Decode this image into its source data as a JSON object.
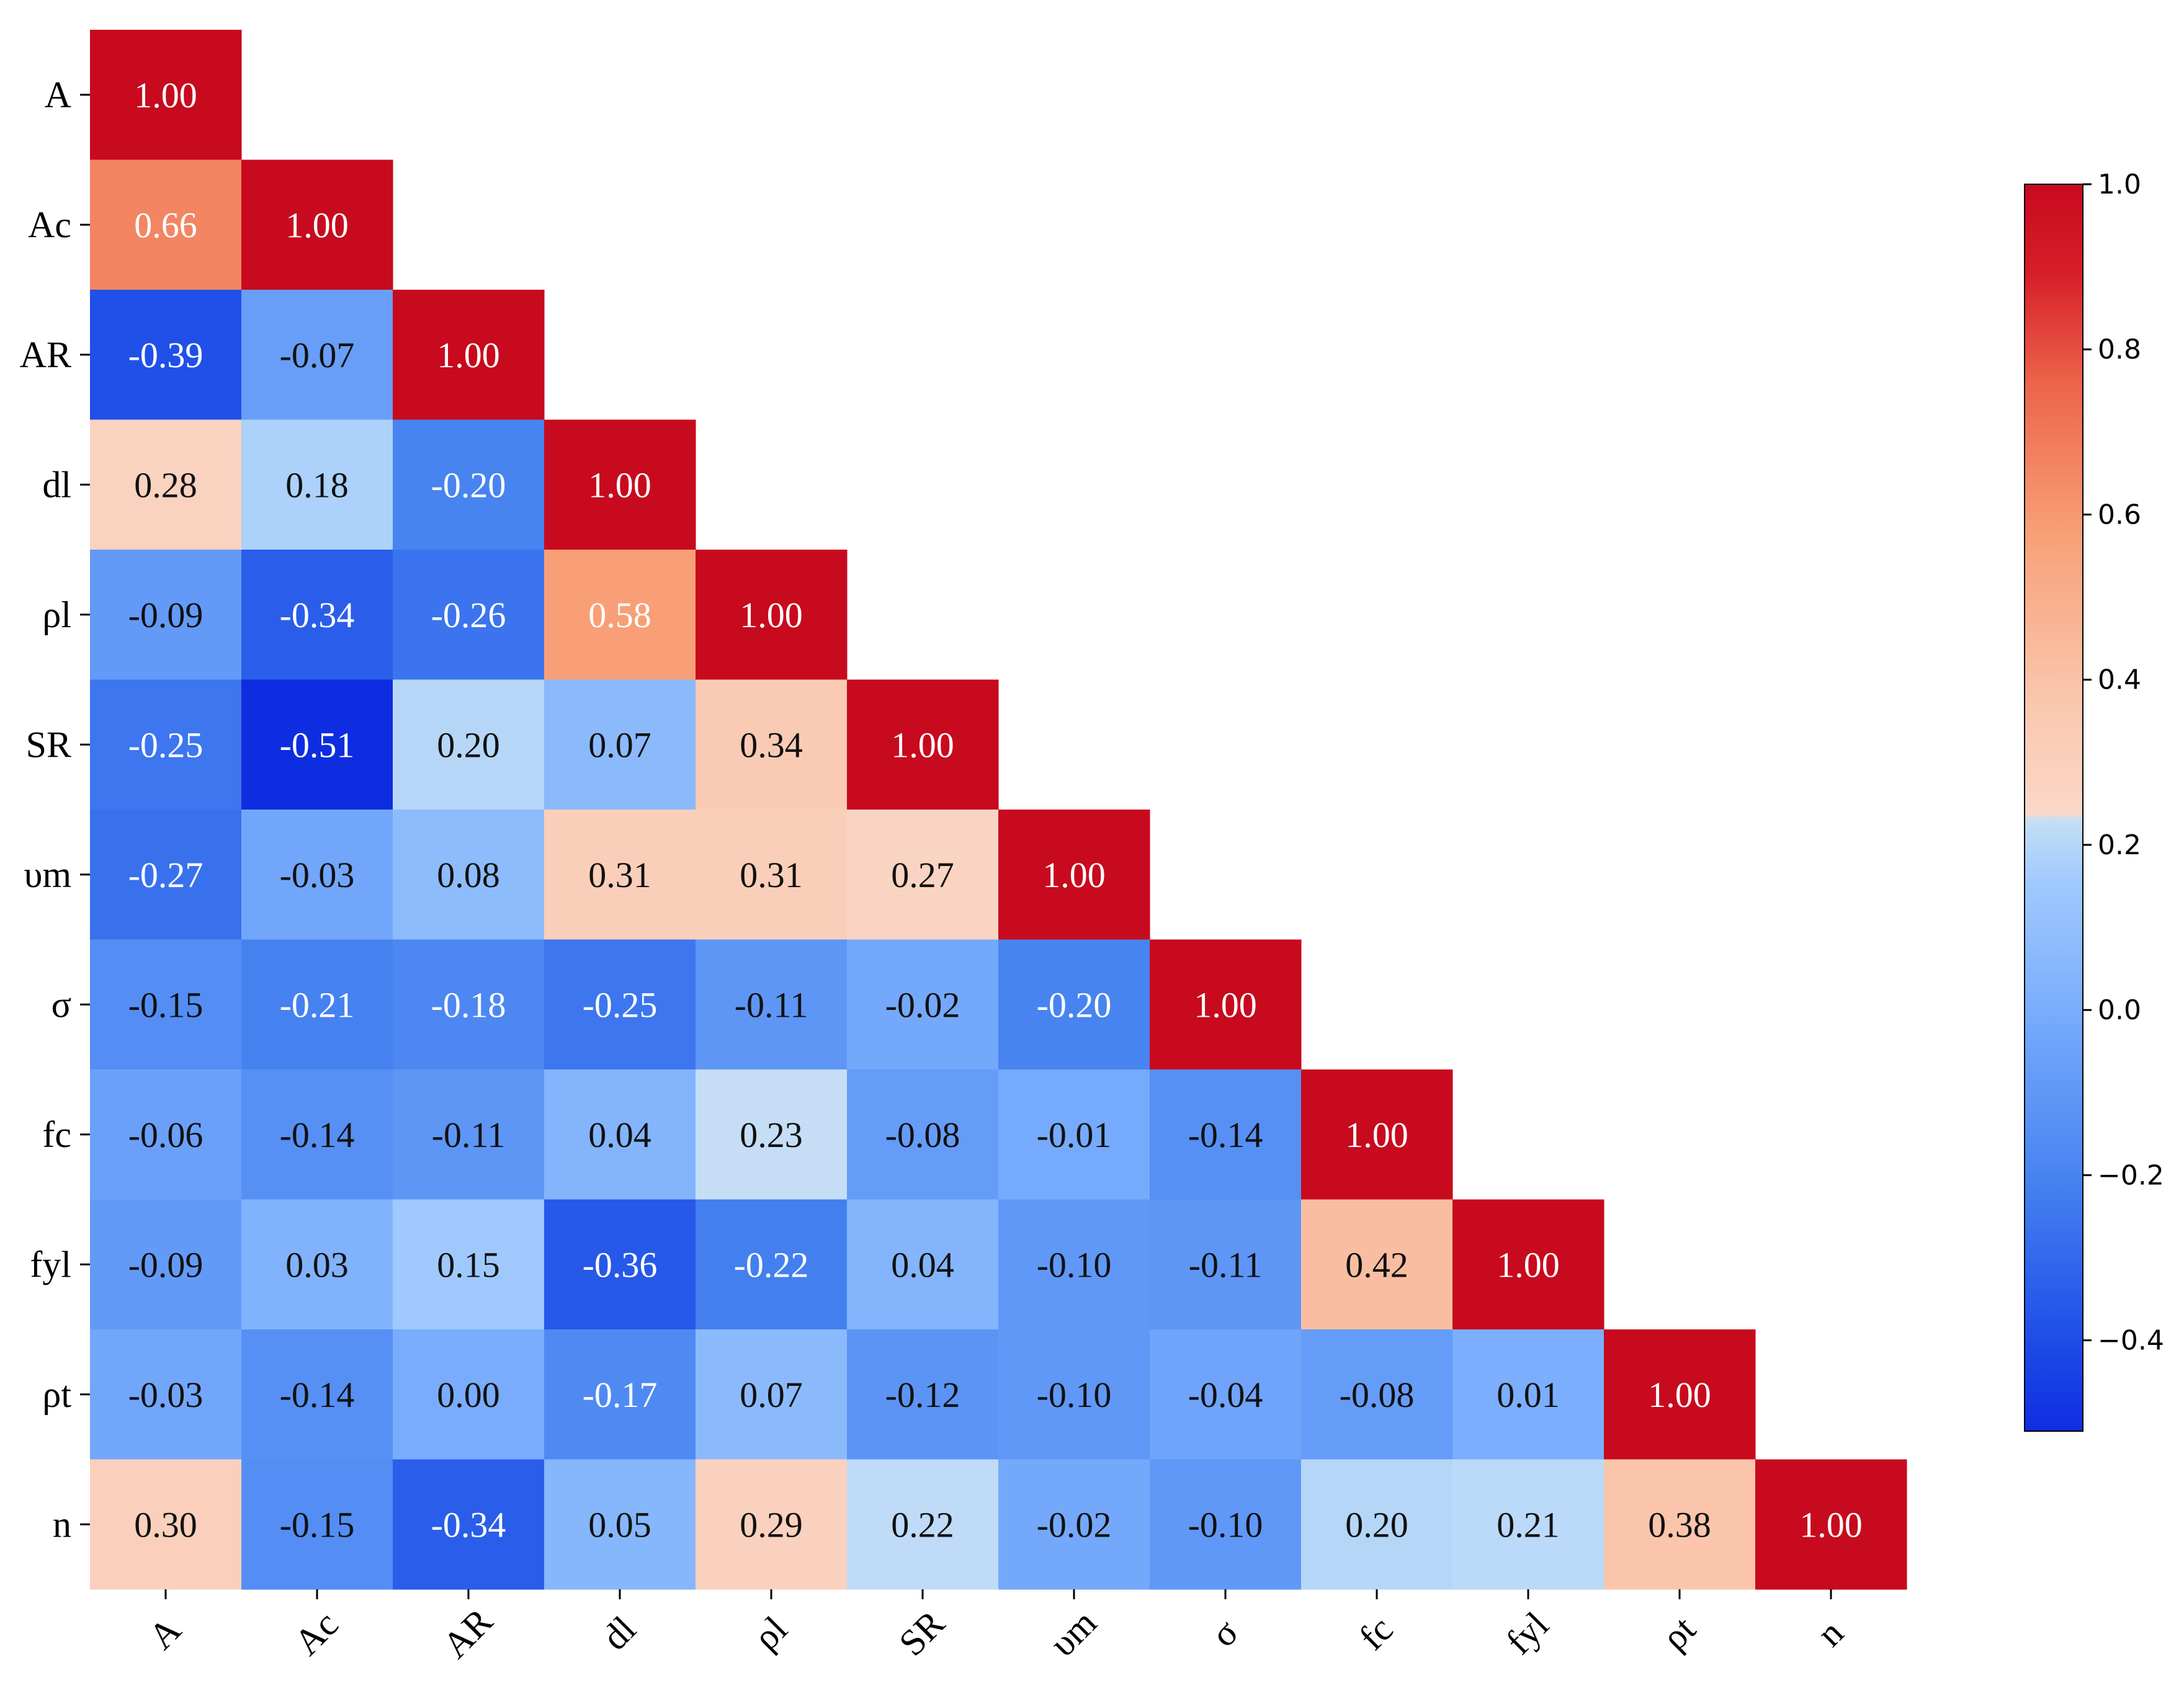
{
  "chart_data": {
    "type": "heatmap",
    "title": "",
    "xlabel": "",
    "ylabel": "",
    "colormap": "coolwarm-like (blue to red)",
    "row_labels": [
      "A",
      "Ac",
      "AR",
      "dl",
      "ρl",
      "SR",
      "υm",
      "σ",
      "fc",
      "fyl",
      "ρt",
      "n"
    ],
    "col_labels": [
      "A",
      "Ac",
      "AR",
      "dl",
      "ρl",
      "SR",
      "υm",
      "σ",
      "fc",
      "fyl",
      "ρt",
      "n"
    ],
    "matrix_shape": "lower-triangular",
    "values": [
      [
        1.0
      ],
      [
        0.66,
        1.0
      ],
      [
        -0.39,
        -0.07,
        1.0
      ],
      [
        0.28,
        0.18,
        -0.2,
        1.0
      ],
      [
        -0.09,
        -0.34,
        -0.26,
        0.58,
        1.0
      ],
      [
        -0.25,
        -0.51,
        0.2,
        0.07,
        0.34,
        1.0
      ],
      [
        -0.27,
        -0.03,
        0.08,
        0.31,
        0.31,
        0.27,
        1.0
      ],
      [
        -0.15,
        -0.21,
        -0.18,
        -0.25,
        -0.11,
        -0.02,
        -0.2,
        1.0
      ],
      [
        -0.06,
        -0.14,
        -0.11,
        0.04,
        0.23,
        -0.08,
        -0.01,
        -0.14,
        1.0
      ],
      [
        -0.09,
        0.03,
        0.15,
        -0.36,
        -0.22,
        0.04,
        -0.1,
        -0.11,
        0.42,
        1.0
      ],
      [
        -0.03,
        -0.14,
        0.0,
        -0.17,
        0.07,
        -0.12,
        -0.1,
        -0.04,
        -0.08,
        0.01,
        1.0
      ],
      [
        0.3,
        -0.15,
        -0.34,
        0.05,
        0.29,
        0.22,
        -0.02,
        -0.1,
        0.2,
        0.21,
        0.38,
        1.0
      ]
    ],
    "colorbar": {
      "range": [
        -0.51,
        1.0
      ],
      "ticks": [
        1.0,
        0.8,
        0.6,
        0.4,
        0.2,
        0.0,
        -0.2,
        -0.4
      ],
      "tick_labels": [
        "1.0",
        "0.8",
        "0.6",
        "0.4",
        "0.2",
        "0.0",
        "−0.2",
        "−0.4"
      ]
    }
  }
}
